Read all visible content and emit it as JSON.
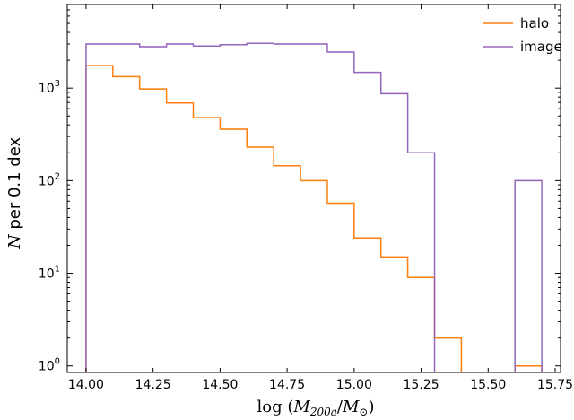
{
  "chart_data": {
    "type": "histogram",
    "xlabel": "log (M200a/M⊙)",
    "ylabel": "N per 0.1 dex",
    "ylabel_italic": "N",
    "ylabel_rest": " per 0.1 dex",
    "xlim": [
      13.93,
      15.77
    ],
    "ylim": [
      0.85,
      8000
    ],
    "yscale": "log",
    "x_ticks": [
      14.0,
      14.25,
      14.5,
      14.75,
      15.0,
      15.25,
      15.5,
      15.75
    ],
    "x_tick_labels": [
      "14.00",
      "14.25",
      "14.50",
      "14.75",
      "15.00",
      "15.25",
      "15.50",
      "15.75"
    ],
    "y_ticks": [
      1,
      10,
      100,
      1000
    ],
    "legend_position": "top-right",
    "bin_edges": [
      14.0,
      14.1,
      14.2,
      14.3,
      14.4,
      14.5,
      14.6,
      14.7,
      14.8,
      14.9,
      15.0,
      15.1,
      15.2,
      15.3,
      15.4,
      15.5,
      15.6,
      15.7
    ],
    "series": [
      {
        "name": "halo",
        "color": "#ff7f0e",
        "values": [
          1750,
          1330,
          980,
          690,
          480,
          360,
          230,
          145,
          100,
          57,
          24,
          15,
          9,
          2,
          0,
          0,
          1
        ]
      },
      {
        "name": "image",
        "color": "#9467bd",
        "values": [
          3000,
          3000,
          2800,
          3000,
          2850,
          2950,
          3050,
          3000,
          3000,
          2450,
          1480,
          870,
          200,
          0,
          0,
          0,
          100
        ]
      }
    ]
  }
}
